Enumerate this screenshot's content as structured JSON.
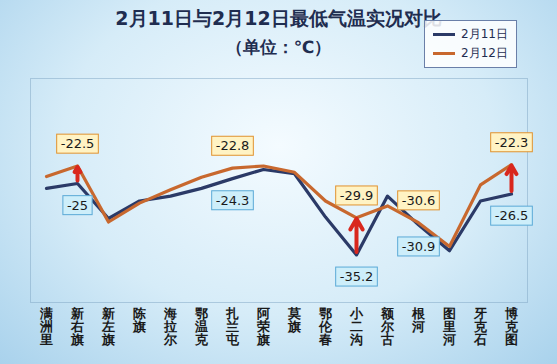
{
  "chart_data": {
    "type": "line",
    "title": "2月11日与2月12日最低气温实况对比",
    "subtitle": "（单位：℃）",
    "categories": [
      "满洲里",
      "新右旗",
      "新左旗",
      "陈旗",
      "海拉尔",
      "鄂温克",
      "扎兰屯",
      "阿荣旗",
      "莫旗",
      "鄂伦春",
      "小二沟",
      "额尔古",
      "根河",
      "图里河",
      "牙克石",
      "博克图"
    ],
    "series": [
      {
        "name": "2月11日",
        "color": "#2b3a67",
        "values": [
          -25.7,
          -25,
          -30,
          -27.5,
          -26.8,
          -25.7,
          -24.3,
          -23,
          -23.6,
          -29.8,
          -35.2,
          -26.8,
          -30.9,
          -34.6,
          -27.5,
          -26.5
        ],
        "value_labels": [
          null,
          "-25",
          null,
          null,
          null,
          null,
          "-24.3",
          null,
          null,
          null,
          "-35.2",
          null,
          "-30.9",
          null,
          null,
          "-26.5"
        ]
      },
      {
        "name": "2月12日",
        "color": "#c8682e",
        "values": [
          -24,
          -22.5,
          -30.5,
          -27.8,
          -25.9,
          -24.1,
          -22.8,
          -22.5,
          -23.4,
          -27.5,
          -29.9,
          -28.2,
          -30.6,
          -34,
          -25.2,
          -22.3
        ],
        "value_labels": [
          null,
          "-22.5",
          null,
          null,
          null,
          null,
          "-22.8",
          null,
          null,
          null,
          "-29.9",
          null,
          "-30.6",
          null,
          null,
          "-22.3"
        ]
      }
    ],
    "ylim": [
      -42,
      -10
    ],
    "yticks": [],
    "tick_labels": "x",
    "legend": "top-right",
    "grid": false
  }
}
